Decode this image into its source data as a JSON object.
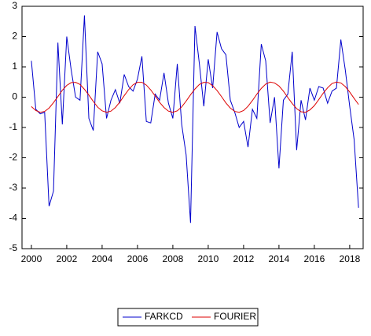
{
  "chart_data": {
    "type": "line",
    "x": [
      2000,
      2000.25,
      2000.5,
      2000.75,
      2001,
      2001.25,
      2001.5,
      2001.75,
      2002,
      2002.25,
      2002.5,
      2002.75,
      2003,
      2003.25,
      2003.5,
      2003.75,
      2004,
      2004.25,
      2004.5,
      2004.75,
      2005,
      2005.25,
      2005.5,
      2005.75,
      2006,
      2006.25,
      2006.5,
      2006.75,
      2007,
      2007.25,
      2007.5,
      2007.75,
      2008,
      2008.25,
      2008.5,
      2008.75,
      2009,
      2009.25,
      2009.5,
      2009.75,
      2010,
      2010.25,
      2010.5,
      2010.75,
      2011,
      2011.25,
      2011.5,
      2011.75,
      2012,
      2012.25,
      2012.5,
      2012.75,
      2013,
      2013.25,
      2013.5,
      2013.75,
      2014,
      2014.25,
      2014.5,
      2014.75,
      2015,
      2015.25,
      2015.5,
      2015.75,
      2016,
      2016.25,
      2016.5,
      2016.75,
      2017,
      2017.25,
      2017.5,
      2017.75,
      2018,
      2018.25,
      2018.5
    ],
    "series": [
      {
        "name": "FARKCD",
        "color": "#0000cc",
        "values": [
          1.2,
          -0.4,
          -0.55,
          -0.5,
          -3.6,
          -3.1,
          1.8,
          -0.9,
          2.0,
          0.9,
          0.0,
          -0.1,
          2.7,
          -0.7,
          -1.1,
          1.5,
          1.1,
          -0.7,
          -0.1,
          0.25,
          -0.2,
          0.75,
          0.35,
          0.2,
          0.6,
          1.35,
          -0.8,
          -0.85,
          0.1,
          -0.1,
          0.8,
          -0.2,
          -0.7,
          1.1,
          -0.9,
          -1.9,
          -4.15,
          2.35,
          1.1,
          -0.3,
          1.25,
          0.3,
          2.15,
          1.6,
          1.4,
          -0.1,
          -0.5,
          -1.0,
          -0.8,
          -1.65,
          -0.4,
          -0.7,
          1.75,
          1.2,
          -0.85,
          0.0,
          -2.35,
          -0.1,
          0.1,
          1.5,
          -1.75,
          -0.1,
          -0.75,
          0.3,
          -0.1,
          0.35,
          0.3,
          -0.2,
          0.2,
          0.3,
          1.9,
          0.9,
          -0.3,
          -1.4,
          -3.65
        ]
      },
      {
        "name": "FOURIER",
        "color": "#dd0000",
        "values": [
          -0.31,
          -0.44,
          -0.5,
          -0.47,
          -0.36,
          -0.18,
          0.02,
          0.23,
          0.39,
          0.48,
          0.49,
          0.42,
          0.26,
          0.07,
          -0.14,
          -0.33,
          -0.45,
          -0.5,
          -0.46,
          -0.34,
          -0.16,
          0.05,
          0.25,
          0.41,
          0.49,
          0.49,
          0.4,
          0.24,
          0.04,
          -0.17,
          -0.34,
          -0.46,
          -0.5,
          -0.45,
          -0.32,
          -0.13,
          0.08,
          0.27,
          0.42,
          0.49,
          0.48,
          0.38,
          0.22,
          0.02,
          -0.19,
          -0.36,
          -0.47,
          -0.5,
          -0.44,
          -0.3,
          -0.11,
          0.1,
          0.29,
          0.43,
          0.5,
          0.47,
          0.37,
          0.2,
          -0.01,
          -0.21,
          -0.38,
          -0.48,
          -0.5,
          -0.42,
          -0.28,
          -0.08,
          0.13,
          0.31,
          0.45,
          0.5,
          0.47,
          0.35,
          0.17,
          -0.04,
          -0.24
        ]
      }
    ],
    "xlim": [
      1999.47,
      2018.76
    ],
    "xticks": [
      2000,
      2002,
      2004,
      2006,
      2008,
      2010,
      2012,
      2014,
      2016,
      2018
    ],
    "ylim": [
      -5,
      3
    ],
    "yticks": [
      -5,
      -4,
      -3,
      -2,
      -1,
      0,
      1,
      2,
      3
    ]
  }
}
